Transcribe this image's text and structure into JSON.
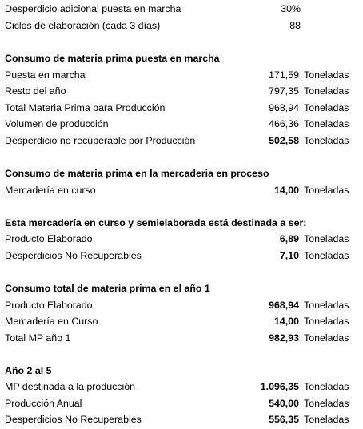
{
  "rows": [
    {
      "label": "Desperdicio adicional puesta en marcha",
      "value": "30%",
      "unit": "",
      "bold_label": false,
      "bold_value": false
    },
    {
      "label": "Ciclos de elaboración (cada 3 días)",
      "value": "88",
      "unit": "",
      "bold_label": false,
      "bold_value": false
    },
    {
      "label": "Consumo de materia prima puesta en marcha",
      "value": "",
      "unit": "",
      "bold_label": true,
      "bold_value": false
    },
    {
      "label": "Puesta en marcha",
      "value": "171,59",
      "unit": "Toneladas",
      "bold_label": false,
      "bold_value": false
    },
    {
      "label": "Resto del año",
      "value": "797,35",
      "unit": "Toneladas",
      "bold_label": false,
      "bold_value": false
    },
    {
      "label": "Total Materia Prima para Producción",
      "value": "968,94",
      "unit": "Toneladas",
      "bold_label": false,
      "bold_value": false
    },
    {
      "label": "Volumen de producción",
      "value": "466,36",
      "unit": "Toneladas",
      "bold_label": false,
      "bold_value": false
    },
    {
      "label": "Desperdicio no recuperable por Producción",
      "value": "502,58",
      "unit": "Toneladas",
      "bold_label": false,
      "bold_value": true
    },
    {
      "label": "Consumo de materia prima en la mercaderia en proceso",
      "value": "",
      "unit": "",
      "bold_label": true,
      "bold_value": false
    },
    {
      "label": "Mercadería en curso",
      "value": "14,00",
      "unit": "Toneladas",
      "bold_label": false,
      "bold_value": true
    },
    {
      "label": "Esta mercadería en curso y semielaborada está destinada a ser:",
      "value": "",
      "unit": "",
      "bold_label": true,
      "bold_value": false
    },
    {
      "label": "Producto Elaborado",
      "value": "6,89",
      "unit": "Toneladas",
      "bold_label": false,
      "bold_value": true
    },
    {
      "label": "Desperdicios No Recuperables",
      "value": "7,10",
      "unit": "Toneladas",
      "bold_label": false,
      "bold_value": true
    },
    {
      "label": "Consumo total de materia prima en el año 1",
      "value": "",
      "unit": "",
      "bold_label": true,
      "bold_value": false
    },
    {
      "label": "Producto Elaborado",
      "value": "968,94",
      "unit": "Toneladas",
      "bold_label": false,
      "bold_value": true
    },
    {
      "label": "Mercadería en Curso",
      "value": "14,00",
      "unit": "Toneladas",
      "bold_label": false,
      "bold_value": true
    },
    {
      "label": "Total MP año 1",
      "value": "982,93",
      "unit": "Toneladas",
      "bold_label": false,
      "bold_value": true
    },
    {
      "label": "Año 2 al 5",
      "value": "",
      "unit": "",
      "bold_label": true,
      "bold_value": false
    },
    {
      "label": "MP destinada a la producción",
      "value": "1.096,35",
      "unit": "Toneladas",
      "bold_label": false,
      "bold_value": true
    },
    {
      "label": "Producción Anual",
      "value": "540,00",
      "unit": "Toneladas",
      "bold_label": false,
      "bold_value": true
    },
    {
      "label": "Desperdicios No Recuperables",
      "value": "556,35",
      "unit": "Toneladas",
      "bold_label": false,
      "bold_value": true
    }
  ]
}
